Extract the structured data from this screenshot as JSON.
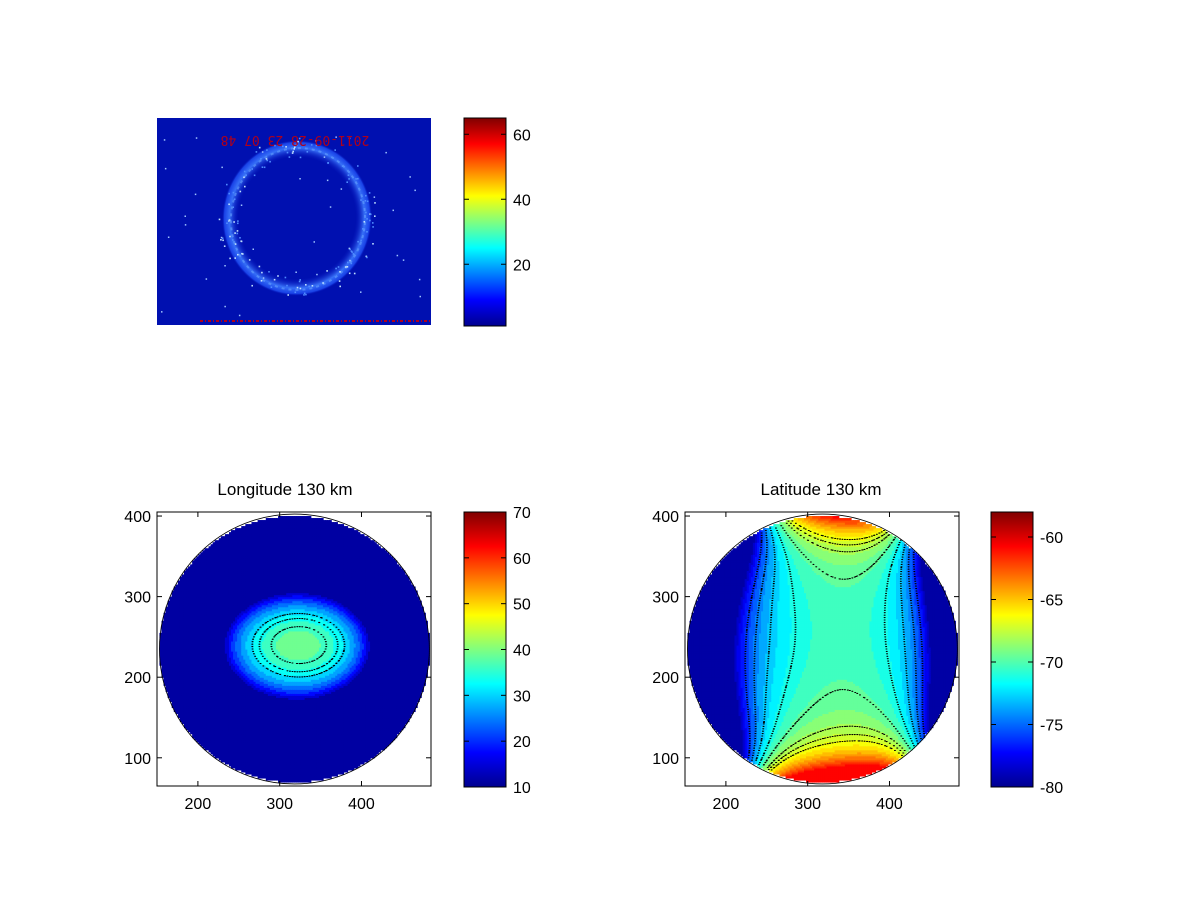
{
  "chart_data": [
    {
      "type": "image",
      "title": "",
      "overlay_text": "2011-09-28 23 07 48",
      "colorbar": {
        "limits": [
          1,
          65
        ],
        "ticks": [
          20,
          40,
          60
        ],
        "colormap": "jet"
      }
    },
    {
      "type": "contourf",
      "title": "Longitude 130 km",
      "xticks": [
        200,
        300,
        400
      ],
      "yticks": [
        100,
        200,
        300,
        400
      ],
      "xlim": [
        150,
        485
      ],
      "ylim": [
        65,
        405
      ],
      "circle": {
        "cx": 318,
        "cy": 235,
        "r": 165
      },
      "field": {
        "base": 39,
        "gx": 0.021,
        "gy": 0.045,
        "rx": -0.0021,
        "ry": -0.0046,
        "gain": 1.1,
        "rmul": 2.8,
        "rpow": 3,
        "min": 12,
        "max": 69,
        "step": 3
      },
      "contour_lines": [
        47,
        42,
        36.5,
        33.5,
        31
      ],
      "colorbar": {
        "limits": [
          10,
          70
        ],
        "ticks": [
          10,
          20,
          30,
          40,
          50,
          60,
          70
        ],
        "colormap": "jet"
      }
    },
    {
      "type": "contourf",
      "title": "Latitude 130 km",
      "xticks": [
        200,
        300,
        400
      ],
      "yticks": [
        100,
        200,
        300,
        400
      ],
      "xlim": [
        150,
        485
      ],
      "ylim": [
        65,
        405
      ],
      "circle": {
        "cx": 318,
        "cy": 235,
        "r": 165
      },
      "field": {
        "base": -70.5,
        "gx": 0.0152,
        "gy": -0.005,
        "rx": -0.00033,
        "ry": 0.00011,
        "gain": 0.95,
        "rmul": 3.4,
        "rpow": 4,
        "min": -79,
        "max": -61,
        "step": 0.8
      },
      "contour_lines": [
        -71.4,
        -69.8,
        -68.2,
        -67.4,
        -66.6,
        -73.0,
        -74.6,
        -76.2
      ],
      "colorbar": {
        "limits": [
          -80,
          -58
        ],
        "ticks": [
          -80,
          -75,
          -70,
          -65,
          -60
        ],
        "colormap": "jet"
      }
    }
  ]
}
